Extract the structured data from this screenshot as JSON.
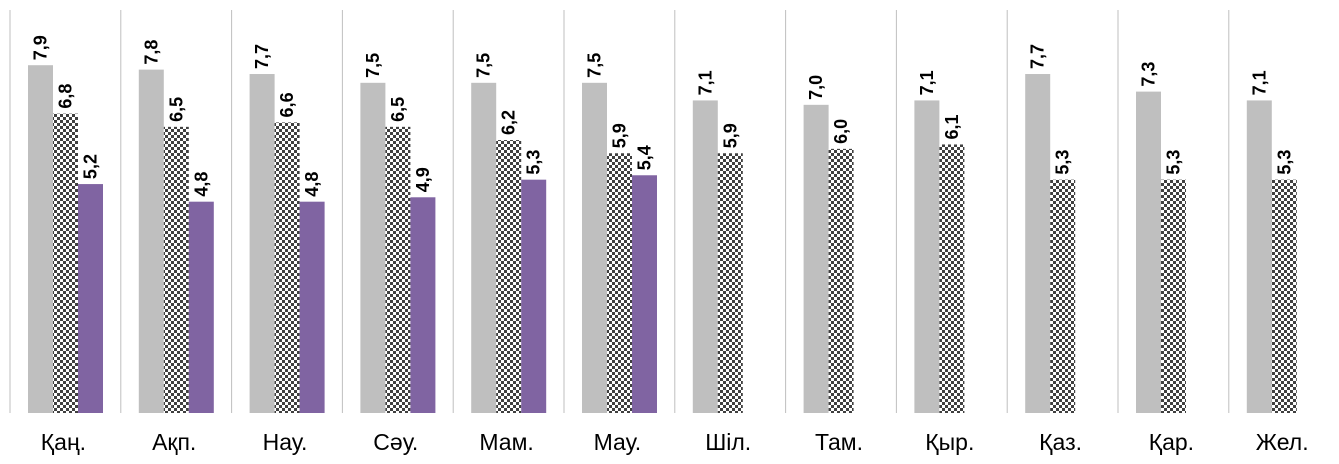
{
  "chart_data": {
    "type": "bar",
    "categories": [
      "Қаң.",
      "Ақп.",
      "Нау.",
      "Сәу.",
      "Мам.",
      "Мау.",
      "Шіл.",
      "Там.",
      "Қыр.",
      "Қаз.",
      "Қар.",
      "Жел."
    ],
    "series": [
      {
        "values": [
          7.9,
          7.8,
          7.7,
          7.5,
          7.5,
          7.5,
          7.1,
          7.0,
          7.1,
          7.7,
          7.3,
          7.1
        ],
        "labels": [
          "7,9",
          "7,8",
          "7,7",
          "7,5",
          "7,5",
          "7,5",
          "7,1",
          "7,0",
          "7,1",
          "7,7",
          "7,3",
          "7,1"
        ],
        "color": "#bfbfbf",
        "fill": "solid"
      },
      {
        "values": [
          6.8,
          6.5,
          6.6,
          6.5,
          6.2,
          5.9,
          5.9,
          6.0,
          6.1,
          5.3,
          5.3,
          5.3
        ],
        "labels": [
          "6,8",
          "6,5",
          "6,6",
          "6,5",
          "6,2",
          "5,9",
          "5,9",
          "6,0",
          "6,1",
          "5,3",
          "5,3",
          "5,3"
        ],
        "color": "#404040",
        "fill": "pattern"
      },
      {
        "values": [
          5.2,
          4.8,
          4.8,
          4.9,
          5.3,
          5.4,
          null,
          null,
          null,
          null,
          null,
          null
        ],
        "labels": [
          "5,2",
          "4,8",
          "4,8",
          "4,9",
          "5,3",
          "5,4",
          "",
          "",
          "",
          "",
          "",
          ""
        ],
        "color": "#8064a2",
        "fill": "solid"
      }
    ],
    "ylim": [
      0,
      8.2
    ],
    "grid": false,
    "legend": "none",
    "title": "",
    "xlabel": "",
    "ylabel": ""
  }
}
